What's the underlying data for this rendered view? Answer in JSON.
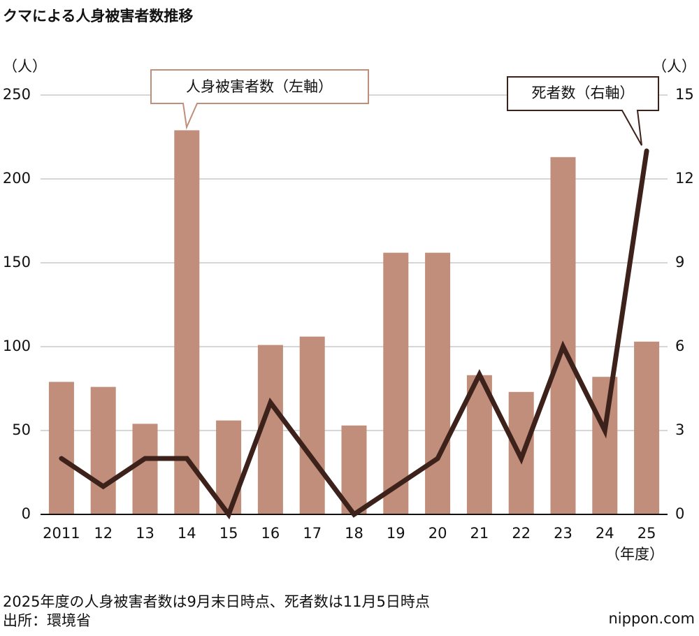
{
  "chart_data": {
    "type": "bar",
    "title": "クマによる人身被害者数推移",
    "y_unit": "（人）",
    "y2_unit": "（人）",
    "x_unit": "（年度）",
    "categories": [
      "2011",
      "12",
      "13",
      "14",
      "15",
      "16",
      "17",
      "18",
      "19",
      "20",
      "21",
      "22",
      "23",
      "24",
      "25"
    ],
    "series": [
      {
        "name": "人身被害者数（左軸）",
        "type": "bar",
        "color": "#c08e7a",
        "values": [
          79,
          76,
          54,
          229,
          56,
          101,
          106,
          53,
          156,
          156,
          83,
          73,
          213,
          82,
          103
        ]
      },
      {
        "name": "死者数（右軸）",
        "type": "line",
        "axis": "y2",
        "color": "#3d211b",
        "values": [
          2,
          1,
          2,
          2,
          0,
          4,
          2,
          0,
          1,
          2,
          5,
          2,
          6,
          3,
          13
        ]
      }
    ],
    "ylim": [
      0,
      250
    ],
    "yticks": [
      0,
      50,
      100,
      150,
      200,
      250
    ],
    "y2lim": [
      0,
      15
    ],
    "y2ticks": [
      0,
      3,
      6,
      9,
      12,
      15
    ],
    "grid": true,
    "note": "2025年度の人身被害者数は9月末日時点、死者数は11月5日時点",
    "source": "出所：環境省",
    "brand": "nippon.com"
  }
}
